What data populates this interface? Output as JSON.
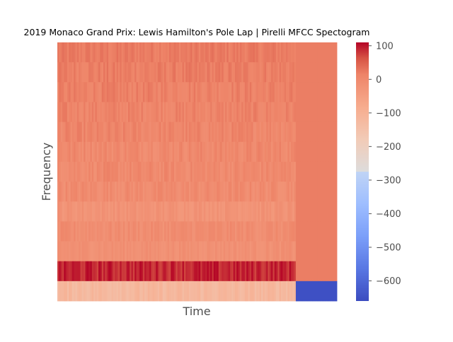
{
  "chart_data": {
    "type": "heatmap",
    "title": "2019 Monaco Grand Prix: Lewis Hamilton's Pole Lap | Pirelli MFCC Spectogram",
    "xlabel": "Time",
    "ylabel": "Frequency",
    "x_ticks_shown": false,
    "y_ticks_shown": false,
    "grid": false,
    "colormap": "coolwarm",
    "colorbar": {
      "min": -660,
      "max": 110,
      "ticks": [
        100,
        0,
        -100,
        -200,
        -300,
        -400,
        -500,
        -600
      ],
      "tick_labels": [
        "100",
        "0",
        "−100",
        "−200",
        "−300",
        "−400",
        "−500",
        "−600"
      ]
    },
    "n_time_frames": 170,
    "signal_fraction": 0.85,
    "rows_top_to_bottom": [
      {
        "signal_mean": 22,
        "signal_variation": 12,
        "tail_value": 20
      },
      {
        "signal_mean": 18,
        "signal_variation": 14,
        "tail_value": 20
      },
      {
        "signal_mean": 14,
        "signal_variation": 15,
        "tail_value": 20
      },
      {
        "signal_mean": 10,
        "signal_variation": 16,
        "tail_value": 20
      },
      {
        "signal_mean": 6,
        "signal_variation": 17,
        "tail_value": 20
      },
      {
        "signal_mean": 2,
        "signal_variation": 18,
        "tail_value": 20
      },
      {
        "signal_mean": 0,
        "signal_variation": 18,
        "tail_value": 20
      },
      {
        "signal_mean": -4,
        "signal_variation": 18,
        "tail_value": 20
      },
      {
        "signal_mean": -22,
        "signal_variation": 14,
        "tail_value": 20
      },
      {
        "signal_mean": -8,
        "signal_variation": 16,
        "tail_value": 20
      },
      {
        "signal_mean": -15,
        "signal_variation": 12,
        "tail_value": 20
      },
      {
        "signal_mean": 90,
        "signal_variation": 20,
        "tail_value": 20
      },
      {
        "signal_mean": -120,
        "signal_variation": 20,
        "tail_value": -650
      }
    ]
  }
}
